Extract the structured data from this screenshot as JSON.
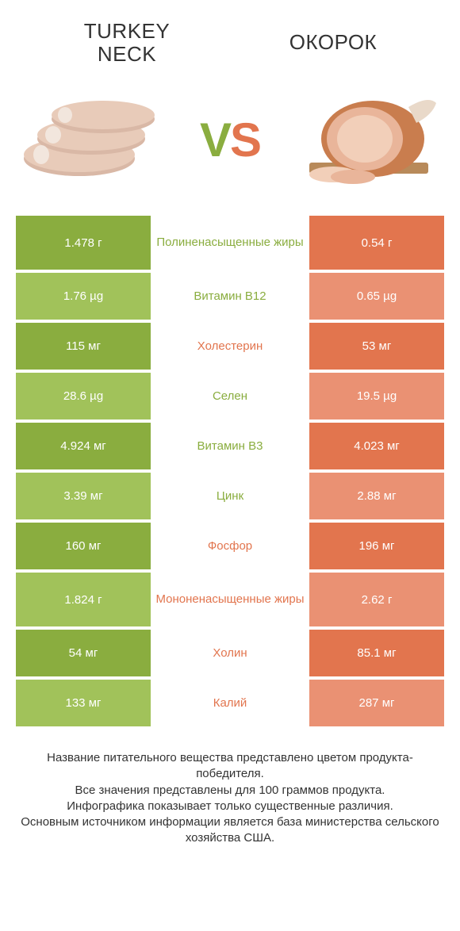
{
  "header": {
    "left_title_line1": "TURKEY",
    "left_title_line2": "NECK",
    "right_title": "ОКОРОК"
  },
  "vs": {
    "v": "V",
    "s": "S"
  },
  "colors": {
    "green_dark": "#8aad3f",
    "green_light": "#a1c25a",
    "orange_dark": "#e2754e",
    "orange_light": "#ea9173",
    "text_green": "#8aad3f",
    "text_orange": "#e2754e",
    "bg": "#ffffff",
    "text": "#333333"
  },
  "rows": [
    {
      "left": "1.478 г",
      "mid": "Полиненасыщенные жиры",
      "right": "0.54 г",
      "winner": "left",
      "tall": true
    },
    {
      "left": "1.76 µg",
      "mid": "Витамин B12",
      "right": "0.65 µg",
      "winner": "left",
      "tall": false
    },
    {
      "left": "115 мг",
      "mid": "Холестерин",
      "right": "53 мг",
      "winner": "right",
      "tall": false
    },
    {
      "left": "28.6 µg",
      "mid": "Селен",
      "right": "19.5 µg",
      "winner": "left",
      "tall": false
    },
    {
      "left": "4.924 мг",
      "mid": "Витамин B3",
      "right": "4.023 мг",
      "winner": "left",
      "tall": false
    },
    {
      "left": "3.39 мг",
      "mid": "Цинк",
      "right": "2.88 мг",
      "winner": "left",
      "tall": false
    },
    {
      "left": "160 мг",
      "mid": "Фосфор",
      "right": "196 мг",
      "winner": "right",
      "tall": false
    },
    {
      "left": "1.824 г",
      "mid": "Мононенасыщенные жиры",
      "right": "2.62 г",
      "winner": "right",
      "tall": true
    },
    {
      "left": "54 мг",
      "mid": "Холин",
      "right": "85.1 мг",
      "winner": "right",
      "tall": false
    },
    {
      "left": "133 мг",
      "mid": "Калий",
      "right": "287 мг",
      "winner": "right",
      "tall": false
    }
  ],
  "footer": {
    "line1": "Название питательного вещества представлено цветом продукта-победителя.",
    "line2": "Все значения представлены для 100 граммов продукта.",
    "line3": "Инфографика показывает только существенные различия.",
    "line4": "Основным источником информации является база министерства сельского хозяйства США."
  }
}
